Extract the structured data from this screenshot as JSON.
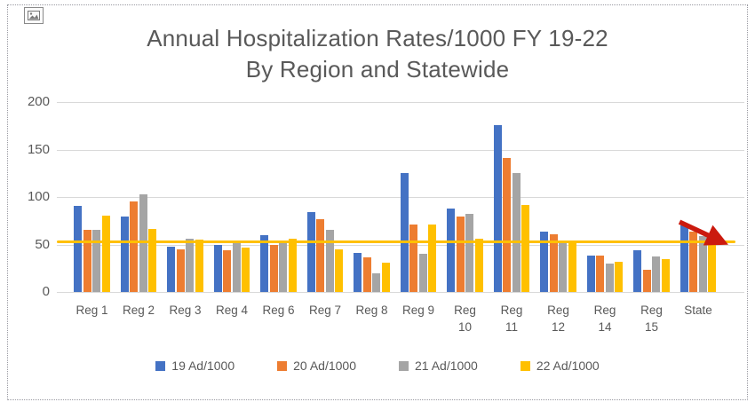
{
  "frame": {
    "icon": "image-placeholder-icon"
  },
  "chart_data": {
    "type": "bar",
    "title": "Annual Hospitalization Rates/1000 FY 19-22 By Region and Statewide",
    "title_lines": [
      "Annual Hospitalization Rates/1000 FY 19-22",
      "By Region and Statewide"
    ],
    "categories": [
      "Reg 1",
      "Reg 2",
      "Reg 3",
      "Reg 4",
      "Reg 6",
      "Reg 7",
      "Reg 8",
      "Reg 9",
      "Reg 10",
      "Reg 11",
      "Reg 12",
      "Reg 14",
      "Reg 15",
      "State"
    ],
    "series": [
      {
        "name": "19 Ad/1000",
        "color": "#4472C4",
        "values": [
          91,
          79,
          48,
          50,
          60,
          84,
          41,
          125,
          88,
          176,
          64,
          38,
          44,
          70
        ]
      },
      {
        "name": "20 Ad/1000",
        "color": "#ED7D31",
        "values": [
          65,
          95,
          45,
          44,
          50,
          77,
          36,
          71,
          79,
          141,
          61,
          38,
          23,
          64
        ]
      },
      {
        "name": "21 Ad/1000",
        "color": "#A5A5A5",
        "values": [
          65,
          103,
          56,
          51,
          51,
          65,
          20,
          40,
          82,
          125,
          53,
          30,
          37,
          59
        ]
      },
      {
        "name": "22 Ad/1000",
        "color": "#FFC000",
        "values": [
          80,
          66,
          55,
          47,
          56,
          45,
          31,
          71,
          56,
          92,
          54,
          32,
          35,
          55
        ]
      }
    ],
    "xlabel": "",
    "ylabel": "",
    "ylim": [
      0,
      200
    ],
    "yticks": [
      0,
      50,
      100,
      150,
      200
    ],
    "grid": true,
    "legend_position": "bottom",
    "trendline": {
      "value": 53,
      "color": "#FFC000"
    },
    "annotation": {
      "type": "down-arrow",
      "color": "#CB1A0E",
      "at_category": "State"
    }
  }
}
